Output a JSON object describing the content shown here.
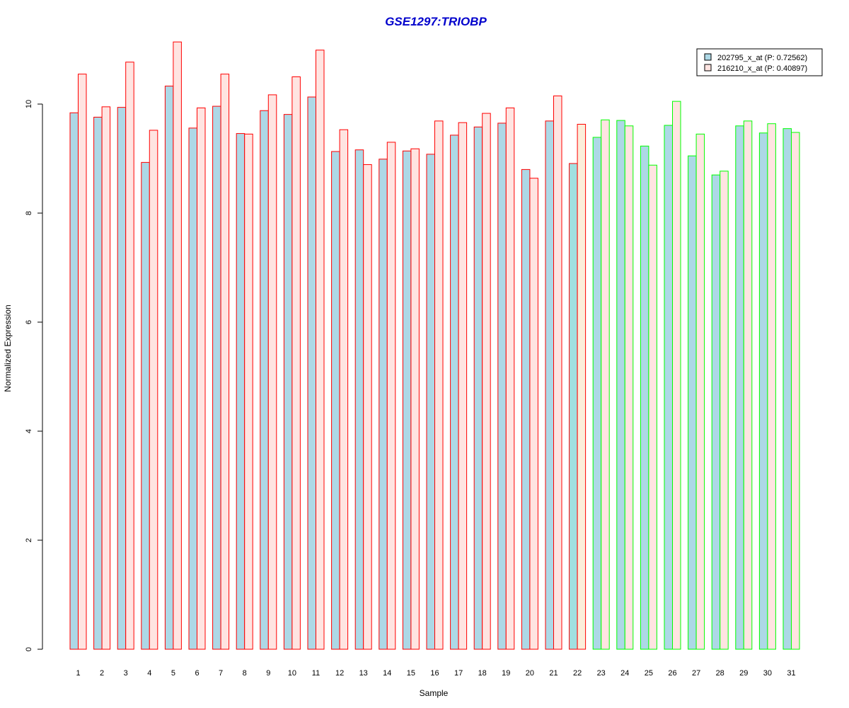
{
  "chart_data": {
    "type": "bar",
    "title": "GSE1297:TRIOBP",
    "xlabel": "Sample",
    "ylabel": "Normalized Expression",
    "ylim": [
      0,
      11.2
    ],
    "y_ticks": [
      "0",
      "2",
      "4",
      "6",
      "8",
      "10"
    ],
    "grid": false,
    "legend_position": "top-right",
    "categories": [
      "1",
      "2",
      "3",
      "4",
      "5",
      "6",
      "7",
      "8",
      "9",
      "10",
      "11",
      "12",
      "13",
      "14",
      "15",
      "16",
      "17",
      "18",
      "19",
      "20",
      "21",
      "22",
      "23",
      "24",
      "25",
      "26",
      "27",
      "28",
      "29",
      "30",
      "31"
    ],
    "series": [
      {
        "name": "202795_x_at (P: 0.72562)",
        "fill": "#add8e6",
        "values": [
          9.84,
          9.76,
          9.94,
          8.93,
          10.33,
          9.56,
          9.96,
          9.46,
          9.88,
          9.81,
          10.13,
          9.13,
          9.16,
          8.99,
          9.14,
          9.08,
          9.43,
          9.58,
          9.65,
          8.8,
          9.69,
          8.91,
          9.39,
          9.7,
          9.23,
          9.61,
          9.05,
          8.7,
          9.6,
          9.47,
          9.55
        ]
      },
      {
        "name": "216210_x_at (P: 0.40897)",
        "fill": "#ffe4e1",
        "values": [
          10.55,
          9.95,
          10.77,
          9.52,
          11.14,
          9.93,
          10.55,
          9.45,
          10.17,
          10.5,
          10.99,
          9.53,
          8.89,
          9.3,
          9.18,
          9.69,
          9.66,
          9.83,
          9.93,
          8.64,
          10.15,
          9.63,
          9.71,
          9.6,
          8.88,
          10.05,
          9.45,
          8.77,
          9.69,
          9.64,
          9.48
        ]
      }
    ],
    "group_border_colors": [
      "#ff0000",
      "#ff0000",
      "#ff0000",
      "#ff0000",
      "#ff0000",
      "#ff0000",
      "#ff0000",
      "#ff0000",
      "#ff0000",
      "#ff0000",
      "#ff0000",
      "#ff0000",
      "#ff0000",
      "#ff0000",
      "#ff0000",
      "#ff0000",
      "#ff0000",
      "#ff0000",
      "#ff0000",
      "#ff0000",
      "#ff0000",
      "#ff0000",
      "#00ff00",
      "#00ff00",
      "#00ff00",
      "#00ff00",
      "#00ff00",
      "#00ff00",
      "#00ff00",
      "#00ff00",
      "#00ff00"
    ],
    "group_fill_overrides": {
      "22": [
        "#a0e0e0",
        "#fbeeda"
      ]
    },
    "colors": {
      "title": "#0000cc",
      "axis": "#000000",
      "legend_border": "#000000"
    }
  }
}
